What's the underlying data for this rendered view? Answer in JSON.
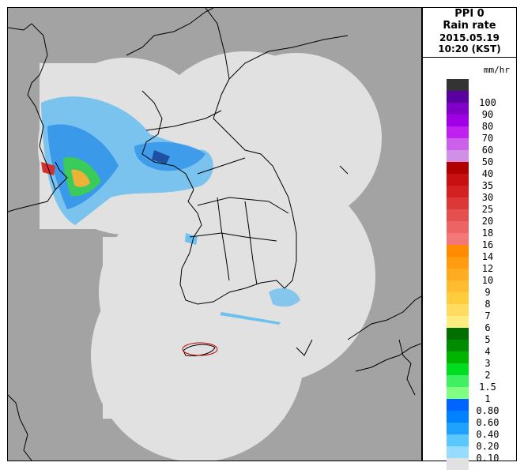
{
  "panel": {
    "title": "PPI 0",
    "subtitle": "Rain rate",
    "date": "2015.05.19",
    "time": "10:20 (KST)",
    "unit": "mm/hr"
  },
  "legend": [
    {
      "label": "",
      "color": "#333333"
    },
    {
      "label": "100",
      "color": "#5a00a0"
    },
    {
      "label": "90",
      "color": "#8000c8"
    },
    {
      "label": "80",
      "color": "#a000e6"
    },
    {
      "label": "70",
      "color": "#c020f0"
    },
    {
      "label": "60",
      "color": "#cc60e8"
    },
    {
      "label": "50",
      "color": "#d090e6"
    },
    {
      "label": "40",
      "color": "#b00000"
    },
    {
      "label": "35",
      "color": "#c81010"
    },
    {
      "label": "30",
      "color": "#d42020"
    },
    {
      "label": "25",
      "color": "#dc3838"
    },
    {
      "label": "20",
      "color": "#e45050"
    },
    {
      "label": "18",
      "color": "#ec6464"
    },
    {
      "label": "16",
      "color": "#f47878"
    },
    {
      "label": "14",
      "color": "#ff8c00"
    },
    {
      "label": "12",
      "color": "#ff9c10"
    },
    {
      "label": "10",
      "color": "#ffac20"
    },
    {
      "label": "9",
      "color": "#ffbc30"
    },
    {
      "label": "8",
      "color": "#ffcc40"
    },
    {
      "label": "7",
      "color": "#ffdc60"
    },
    {
      "label": "6",
      "color": "#ffec80"
    },
    {
      "label": "5",
      "color": "#006e00"
    },
    {
      "label": "4",
      "color": "#008c00"
    },
    {
      "label": "3",
      "color": "#00b400"
    },
    {
      "label": "2",
      "color": "#00dc20"
    },
    {
      "label": "1.5",
      "color": "#40f060"
    },
    {
      "label": "1",
      "color": "#80ff80"
    },
    {
      "label": "0.80",
      "color": "#0064ff"
    },
    {
      "label": "0.60",
      "color": "#0082ff"
    },
    {
      "label": "0.40",
      "color": "#20a0ff"
    },
    {
      "label": "0.20",
      "color": "#5ac8ff"
    },
    {
      "label": "0.10",
      "color": "#96dcff"
    },
    {
      "label": "",
      "color": "#e1e1e1"
    }
  ],
  "map": {
    "background_color": "#a3a3a3",
    "coverage_color": "#e1e1e1",
    "coastline_color": "#000000"
  }
}
